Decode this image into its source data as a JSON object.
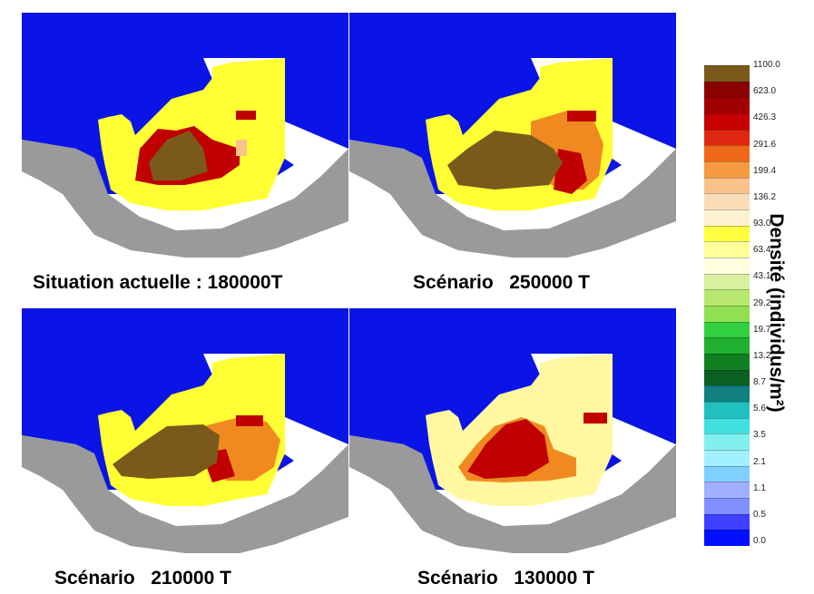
{
  "maps": [
    {
      "caption": "Situation actuelle : 180000T",
      "scenario": "180000T"
    },
    {
      "caption": "Scénario   250000 T",
      "scenario": "250000 T"
    },
    {
      "caption": "Scénario   210000 T",
      "scenario": "210000 T"
    },
    {
      "caption": "Scénario   130000 T",
      "scenario": "130000 T"
    }
  ],
  "legend": {
    "title": "Densité (individus/m²)",
    "ticks": [
      "1100.0",
      "623.0",
      "426.3",
      "291.6",
      "199.4",
      "136.2",
      "93.0",
      "63.4",
      "43.1",
      "29.2",
      "19.7",
      "13.2",
      "8.7",
      "5.6",
      "3.5",
      "2.1",
      "1.1",
      "0.5",
      "0.0"
    ],
    "colors": [
      "#7a5a1a",
      "#8b0000",
      "#a00000",
      "#c80000",
      "#e02810",
      "#ef6a18",
      "#f59a40",
      "#f9c28a",
      "#fbdcb8",
      "#fdf1d0",
      "#ffff40",
      "#ffff9a",
      "#ffffe0",
      "#d8f0a0",
      "#b8e870",
      "#90e050",
      "#30d040",
      "#20b030",
      "#108020",
      "#0a6020",
      "#108080",
      "#20c0c0",
      "#40e0e0",
      "#80f0f0",
      "#a0f0ff",
      "#80d0ff",
      "#a0b0ff",
      "#8090ff",
      "#4040ff",
      "#0010ff"
    ]
  },
  "colors": {
    "sea": "#0a14e6",
    "land": "#9a9a9a",
    "class_93": "#ffff33",
    "class_63": "#fff8a0",
    "class_high": "#f08a20",
    "class_peak": "#7a5a1a",
    "class_red": "#c00000"
  }
}
